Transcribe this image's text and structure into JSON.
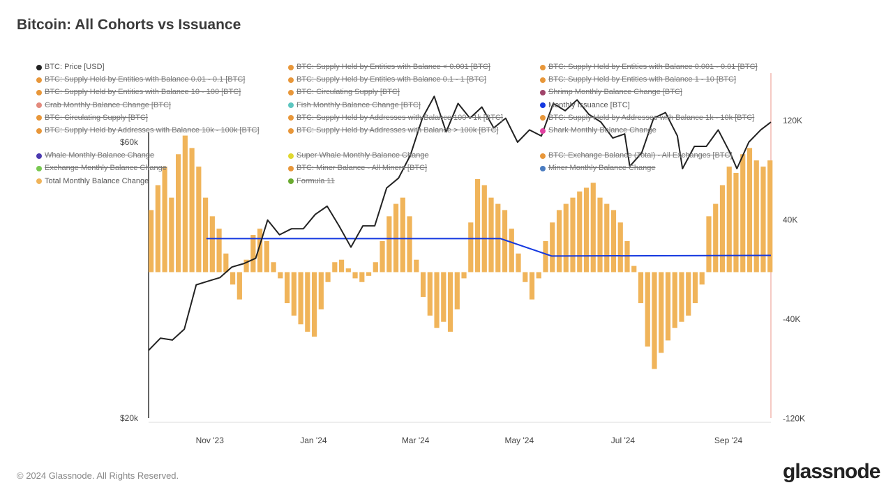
{
  "title": "Bitcoin: All Cohorts vs Issuance",
  "footer": "© 2024 Glassnode. All Rights Reserved.",
  "logo": "glassnode",
  "legend": [
    {
      "label": "BTC: Price [USD]",
      "color": "#222222",
      "active": true
    },
    {
      "label": "BTC: Supply Held by Entities with Balance < 0.001 [BTC]",
      "color": "#E8973A",
      "active": false
    },
    {
      "label": "BTC: Supply Held by Entities with Balance 0.001 - 0.01 [BTC]",
      "color": "#E8973A",
      "active": false
    },
    {
      "label": "BTC: Supply Held by Entities with Balance 0.01 - 0.1 [BTC]",
      "color": "#E8973A",
      "active": false
    },
    {
      "label": "BTC: Supply Held by Entities with Balance 0.1 - 1 [BTC]",
      "color": "#E8973A",
      "active": false
    },
    {
      "label": "BTC: Supply Held by Entities with Balance 1 - 10 [BTC]",
      "color": "#E8973A",
      "active": false
    },
    {
      "label": "BTC: Supply Held by Entities with Balance 10 - 100 [BTC]",
      "color": "#E8973A",
      "active": false
    },
    {
      "label": "BTC: Circulating Supply [BTC]",
      "color": "#E8973A",
      "active": false
    },
    {
      "label": "Shrimp Monthly Balance Change [BTC]",
      "color": "#A0446A",
      "active": false
    },
    {
      "label": "Crab Monthly Balance Change [BTC]",
      "color": "#E38A7D",
      "active": false
    },
    {
      "label": "Fish Monthly Balance Change [BTC]",
      "color": "#5CC6C0",
      "active": false
    },
    {
      "label": "Monthly Issuance [BTC]",
      "color": "#1438E0",
      "active": true
    },
    {
      "label": "BTC: Circulating Supply [BTC]",
      "color": "#E8973A",
      "active": false
    },
    {
      "label": "BTC: Supply Held by Addresses with Balance 100 - 1k [BTC]",
      "color": "#E8973A",
      "active": false
    },
    {
      "label": "BTC: Supply Held by Addresses with Balance 1k - 10k [BTC]",
      "color": "#E8973A",
      "active": false
    },
    {
      "label": "BTC: Supply Held by Addresses with Balance 10k - 100k [BTC]",
      "color": "#E8973A",
      "active": false
    },
    {
      "label": "BTC: Supply Held by Addresses with Balance > 100k [BTC]",
      "color": "#E8973A",
      "active": false
    },
    {
      "label": "Shark Monthly Balance Change",
      "color": "#E040A0",
      "active": false
    },
    {
      "label": "Whale Monthly Balance Change",
      "color": "#4B3AB0",
      "active": false
    },
    {
      "label": "Super Whale Monthly Balance Change",
      "color": "#E0D830",
      "active": false
    },
    {
      "label": "BTC: Exchange Balance (Total) - All Exchanges [BTC]",
      "color": "#E8973A",
      "active": false
    },
    {
      "label": "Exchange Monthly Balance Change",
      "color": "#78C850",
      "active": false
    },
    {
      "label": "BTC: Miner Balance - All Miners [BTC]",
      "color": "#E8973A",
      "active": false
    },
    {
      "label": "Miner Monthly Balance Change",
      "color": "#4A7CC0",
      "active": false
    },
    {
      "label": "Total Monthly Balance Change",
      "color": "#F0B45A",
      "active": true
    },
    {
      "label": "Formula 11",
      "color": "#6AAA30",
      "active": false
    }
  ],
  "chart_data": {
    "type": "bar+line",
    "title": "Bitcoin: All Cohorts vs Issuance",
    "x_range": [
      "2023-09-26",
      "2024-09-26"
    ],
    "x_ticks": [
      {
        "date": "2023-11-01",
        "label": "Nov '23"
      },
      {
        "date": "2024-01-01",
        "label": "Jan '24"
      },
      {
        "date": "2024-03-01",
        "label": "Mar '24"
      },
      {
        "date": "2024-05-01",
        "label": "May '24"
      },
      {
        "date": "2024-07-01",
        "label": "Jul '24"
      },
      {
        "date": "2024-09-01",
        "label": "Sep '24"
      }
    ],
    "y_left": {
      "scale": "log",
      "range": [
        20000,
        120000
      ],
      "ticks": [
        {
          "value": 20000,
          "label": "$20k"
        },
        {
          "value": 60000,
          "label": "$60k"
        }
      ]
    },
    "y_right": {
      "scale": "linear",
      "range": [
        -120000,
        120000
      ],
      "ticks": [
        {
          "value": 120000,
          "label": "120K"
        },
        {
          "value": 40000,
          "label": "40K"
        },
        {
          "value": -40000,
          "label": "-40K"
        },
        {
          "value": -120000,
          "label": "-120K"
        }
      ]
    },
    "grid": false,
    "price": {
      "name": "BTC: Price [USD]",
      "axis": "left",
      "color": "#222222",
      "points": [
        [
          "2023-09-26",
          26200
        ],
        [
          "2023-10-03",
          27500
        ],
        [
          "2023-10-10",
          27300
        ],
        [
          "2023-10-17",
          28500
        ],
        [
          "2023-10-24",
          34000
        ],
        [
          "2023-10-31",
          34500
        ],
        [
          "2023-11-07",
          35000
        ],
        [
          "2023-11-14",
          36500
        ],
        [
          "2023-11-21",
          37000
        ],
        [
          "2023-11-28",
          37800
        ],
        [
          "2023-12-05",
          44000
        ],
        [
          "2023-12-12",
          41500
        ],
        [
          "2023-12-19",
          42500
        ],
        [
          "2023-12-26",
          42500
        ],
        [
          "2024-01-02",
          45000
        ],
        [
          "2024-01-09",
          46500
        ],
        [
          "2024-01-16",
          43000
        ],
        [
          "2024-01-23",
          39500
        ],
        [
          "2024-01-30",
          43000
        ],
        [
          "2024-02-06",
          43000
        ],
        [
          "2024-02-13",
          50000
        ],
        [
          "2024-02-20",
          52000
        ],
        [
          "2024-02-27",
          57000
        ],
        [
          "2024-03-05",
          66000
        ],
        [
          "2024-03-12",
          72000
        ],
        [
          "2024-03-19",
          62500
        ],
        [
          "2024-03-26",
          70000
        ],
        [
          "2024-04-02",
          66000
        ],
        [
          "2024-04-09",
          69000
        ],
        [
          "2024-04-16",
          63500
        ],
        [
          "2024-04-23",
          66000
        ],
        [
          "2024-04-30",
          60000
        ],
        [
          "2024-05-07",
          63000
        ],
        [
          "2024-05-14",
          61500
        ],
        [
          "2024-05-21",
          70000
        ],
        [
          "2024-05-28",
          68000
        ],
        [
          "2024-06-04",
          71000
        ],
        [
          "2024-06-11",
          67000
        ],
        [
          "2024-06-18",
          65000
        ],
        [
          "2024-06-25",
          61000
        ],
        [
          "2024-07-02",
          62000
        ],
        [
          "2024-07-05",
          54500
        ],
        [
          "2024-07-12",
          57500
        ],
        [
          "2024-07-19",
          66000
        ],
        [
          "2024-07-26",
          67500
        ],
        [
          "2024-08-02",
          61500
        ],
        [
          "2024-08-05",
          54000
        ],
        [
          "2024-08-12",
          59000
        ],
        [
          "2024-08-19",
          59000
        ],
        [
          "2024-08-26",
          63000
        ],
        [
          "2024-09-02",
          57500
        ],
        [
          "2024-09-06",
          54000
        ],
        [
          "2024-09-13",
          60000
        ],
        [
          "2024-09-20",
          63000
        ],
        [
          "2024-09-26",
          65000
        ]
      ]
    },
    "issuance": {
      "name": "Monthly Issuance [BTC]",
      "axis": "right",
      "color": "#1438E0",
      "points": [
        [
          "2023-10-30",
          27000
        ],
        [
          "2024-04-20",
          27000
        ],
        [
          "2024-05-20",
          13000
        ],
        [
          "2024-09-26",
          13500
        ]
      ]
    },
    "total_balance_change": {
      "name": "Total Monthly Balance Change",
      "axis": "right",
      "color": "#F0B45A",
      "start": "2023-09-26",
      "step_days": 4,
      "values_k": [
        50,
        70,
        85,
        60,
        95,
        110,
        100,
        85,
        60,
        45,
        35,
        15,
        -10,
        -22,
        10,
        30,
        35,
        25,
        8,
        -5,
        -25,
        -35,
        -42,
        -48,
        -52,
        -30,
        -8,
        8,
        10,
        3,
        -5,
        -8,
        -3,
        8,
        25,
        45,
        55,
        60,
        45,
        10,
        -20,
        -35,
        -45,
        -40,
        -48,
        -30,
        -5,
        40,
        75,
        70,
        60,
        55,
        50,
        35,
        15,
        -8,
        -22,
        -5,
        25,
        40,
        50,
        55,
        60,
        65,
        68,
        72,
        60,
        55,
        50,
        40,
        25,
        5,
        -25,
        -60,
        -78,
        -65,
        -55,
        -45,
        -40,
        -35,
        -25,
        -10,
        45,
        55,
        70,
        85,
        80,
        95,
        100,
        90,
        85,
        90
      ]
    }
  }
}
